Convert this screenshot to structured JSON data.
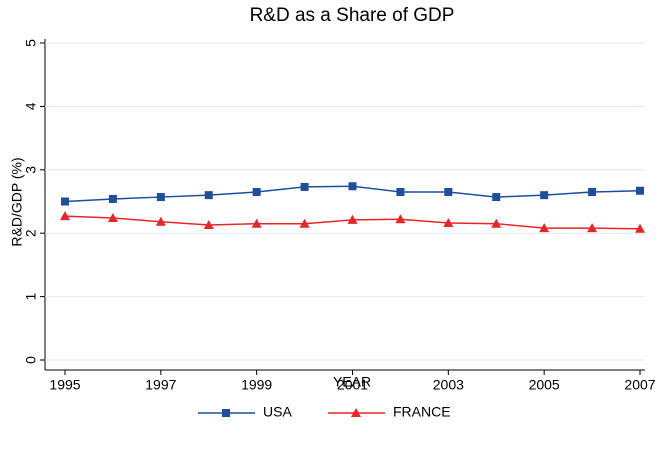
{
  "chart_data": {
    "type": "line",
    "title": "R&D as a Share of GDP",
    "x_label": "YEAR",
    "y_label": "R&D/GDP (%)",
    "x": [
      1995,
      1996,
      1997,
      1998,
      1999,
      2000,
      2001,
      2002,
      2003,
      2004,
      2005,
      2006,
      2007
    ],
    "series": [
      {
        "name": "USA",
        "color": "#1f4e9c",
        "marker": "square",
        "values": [
          2.5,
          2.54,
          2.57,
          2.6,
          2.65,
          2.73,
          2.74,
          2.65,
          2.65,
          2.57,
          2.6,
          2.65,
          2.67
        ]
      },
      {
        "name": "FRANCE",
        "color": "#e8262a",
        "marker": "triangle",
        "values": [
          2.27,
          2.24,
          2.18,
          2.13,
          2.15,
          2.15,
          2.21,
          2.22,
          2.16,
          2.15,
          2.08,
          2.08,
          2.07
        ]
      }
    ],
    "xlim": [
      1995,
      2007
    ],
    "xticks": [
      1995,
      1997,
      1999,
      2001,
      2003,
      2005,
      2007
    ],
    "ylim": [
      0,
      5
    ],
    "yticks": [
      0,
      1,
      2,
      3,
      4,
      5
    ],
    "grid": true,
    "legend": "bottom"
  }
}
